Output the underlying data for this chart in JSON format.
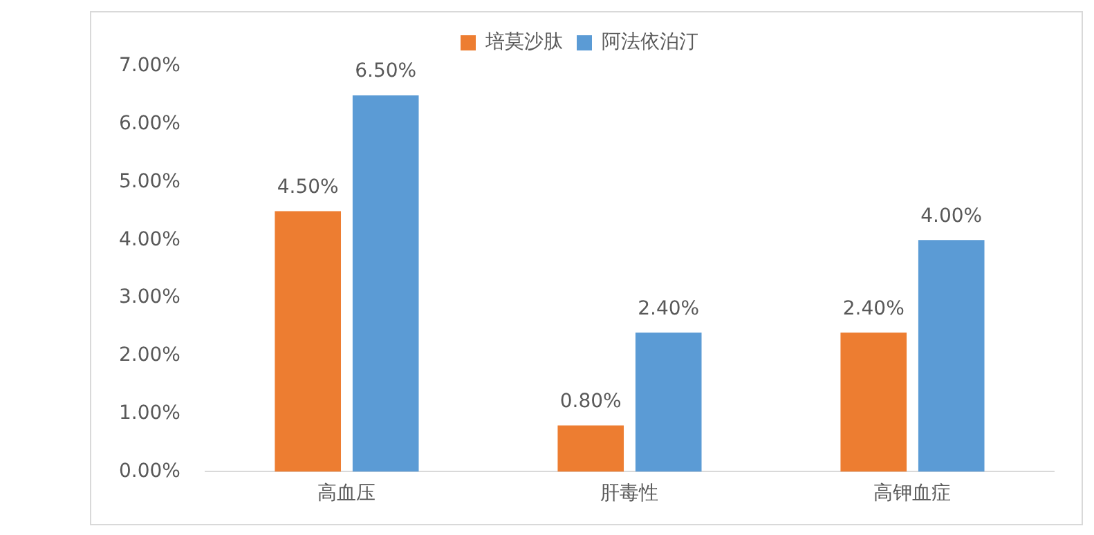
{
  "chart_data": {
    "type": "bar",
    "categories": [
      "高血压",
      "肝毒性",
      "高钾血症"
    ],
    "series": [
      {
        "name": "培莫沙肽",
        "color": "#ed7d31",
        "values": [
          4.5,
          0.8,
          2.4
        ],
        "value_labels": [
          "4.50%",
          "0.80%",
          "2.40%"
        ]
      },
      {
        "name": "阿法依泊汀",
        "color": "#5b9bd5",
        "values": [
          6.5,
          2.4,
          4.0
        ],
        "value_labels": [
          "6.50%",
          "2.40%",
          "4.00%"
        ]
      }
    ],
    "ylim": [
      0,
      7
    ],
    "yticks": [
      {
        "value": 0,
        "label": "0.00%"
      },
      {
        "value": 1,
        "label": "1.00%"
      },
      {
        "value": 2,
        "label": "2.00%"
      },
      {
        "value": 3,
        "label": "3.00%"
      },
      {
        "value": 4,
        "label": "4.00%"
      },
      {
        "value": 5,
        "label": "5.00%"
      },
      {
        "value": 6,
        "label": "6.00%"
      },
      {
        "value": 7,
        "label": "7.00%"
      }
    ],
    "grid": false,
    "legend": "top"
  }
}
